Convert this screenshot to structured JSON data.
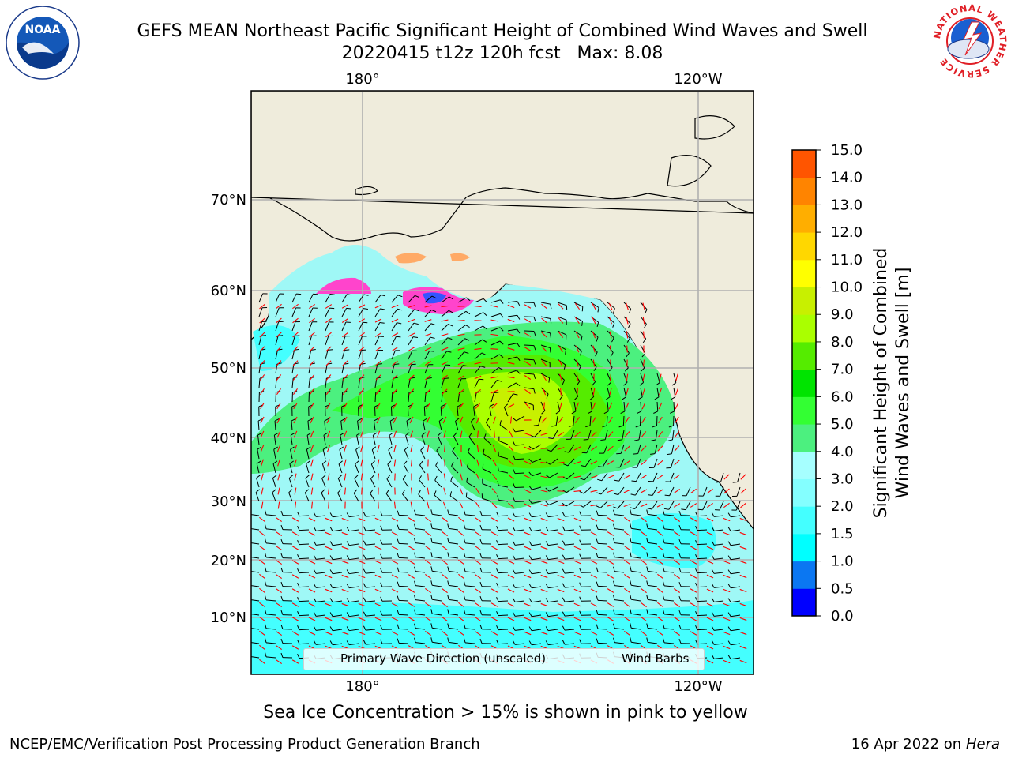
{
  "title": {
    "line1": "GEFS MEAN Northeast Pacific Significant Height of Combined Wind Waves and Swell",
    "line2": "20220415 t12z 120h fcst   Max: 8.08"
  },
  "logos": {
    "left": "NOAA",
    "right": "NATIONAL WEATHER SERVICE"
  },
  "map": {
    "lon_labels_top": [
      "180°",
      "120°W"
    ],
    "lon_labels_bottom": [
      "180°",
      "120°W"
    ],
    "lat_labels": [
      "70°N",
      "60°N",
      "50°N",
      "40°N",
      "30°N",
      "20°N",
      "10°N"
    ],
    "colors": {
      "land": "#efecdc",
      "ocean_wave": "#9ff8f6",
      "coast": "#000000",
      "grid": "#b0b0b0"
    },
    "legend": {
      "wave_label": "Primary Wave Direction (unscaled)",
      "wave_color": "#ff0000",
      "barb_label": "Wind Barbs",
      "barb_color": "#000000"
    }
  },
  "colorbar": {
    "label_line1": "Significant Height of Combined",
    "label_line2": "Wind Waves and Swell [m]",
    "ticks": [
      "0.0",
      "0.5",
      "1.0",
      "1.5",
      "2.0",
      "3.0",
      "4.0",
      "5.0",
      "6.0",
      "7.0",
      "8.0",
      "9.0",
      "10.0",
      "11.0",
      "12.0",
      "13.0",
      "14.0",
      "15.0"
    ],
    "colors": [
      "#0000ff",
      "#0b77f2",
      "#00ffff",
      "#44ffff",
      "#84ffff",
      "#a6ffff",
      "#4cf07f",
      "#33ff33",
      "#00e400",
      "#55ec00",
      "#aaff00",
      "#c8f000",
      "#ffff00",
      "#ffd700",
      "#ffae00",
      "#ff8400",
      "#ff5500",
      "#ff0000"
    ]
  },
  "footer": {
    "ice_note": "Sea Ice Concentration > 15% is shown in pink to yellow",
    "left": "NCEP/EMC/Verification Post Processing Product Generation Branch",
    "right_date": "16 Apr 2022 on ",
    "right_host": "Hera"
  }
}
